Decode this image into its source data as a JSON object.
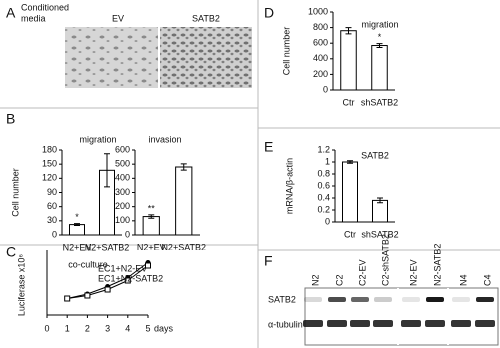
{
  "panels": [
    "A",
    "B",
    "C",
    "D",
    "E",
    "F"
  ],
  "images": {
    "caption": [
      "Conditioned",
      "media"
    ],
    "labels": [
      "EV",
      "SATB2"
    ]
  },
  "chart_data": [
    {
      "type": "bar",
      "title": "migration",
      "ylabel": "Cell number",
      "categories": [
        "N2+EV",
        "N2+SATB2"
      ],
      "values": [
        22,
        137
      ],
      "errors": [
        2,
        35
      ],
      "annotations": [
        "*",
        null
      ],
      "ylim": [
        0,
        180
      ],
      "yticks": [
        0,
        30,
        60,
        90,
        120,
        150,
        180
      ],
      "color": "#ffffff"
    },
    {
      "type": "bar",
      "title": "invasion",
      "categories": [
        "N2+EV",
        "N2+SATB2"
      ],
      "values": [
        130,
        480
      ],
      "errors": [
        12,
        22
      ],
      "annotations": [
        "**",
        null
      ],
      "ylim": [
        0,
        600
      ],
      "yticks": [
        0,
        100,
        200,
        300,
        400,
        500,
        600
      ],
      "color": "#ffffff"
    },
    {
      "type": "line",
      "title": "co-culture",
      "ylabel": "Luciferase x10⁶",
      "xlabel": "days",
      "x": [
        1,
        2,
        3,
        4,
        5
      ],
      "xlim": [
        0,
        5
      ],
      "xticks": [
        0,
        1,
        2,
        3,
        4,
        5
      ],
      "ylim": [
        0,
        4
      ],
      "series": [
        {
          "name": "EC1+N2-EV",
          "color": "#000000",
          "marker": "circle",
          "values": [
            1.1,
            1.4,
            1.9,
            2.5,
            3.5
          ]
        },
        {
          "name": "EC1+N2-SATB2",
          "color": "#000000",
          "marker": "square",
          "values": [
            1.1,
            1.3,
            1.7,
            2.3,
            3.3
          ]
        }
      ]
    },
    {
      "type": "bar",
      "title": "migration",
      "ylabel": "Cell number",
      "categories": [
        "Ctr",
        "shSATB2"
      ],
      "values": [
        760,
        570
      ],
      "errors": [
        40,
        25
      ],
      "annotations": [
        null,
        "*"
      ],
      "ylim": [
        0,
        1000
      ],
      "yticks": [
        0,
        200,
        400,
        600,
        800,
        1000
      ],
      "color": "#ffffff"
    },
    {
      "type": "bar",
      "title": "SATB2",
      "ylabel": "mRNA/β-actin",
      "categories": [
        "Ctr",
        "shSATB2"
      ],
      "values": [
        1.0,
        0.36
      ],
      "errors": [
        0.02,
        0.04
      ],
      "annotations": [
        null,
        null
      ],
      "ylim": [
        0,
        1.2
      ],
      "yticks": [
        0,
        0.2,
        0.4,
        0.6,
        0.8,
        1,
        1.2
      ],
      "color": "#ffffff"
    }
  ],
  "blot": {
    "lanes": [
      "N2",
      "C2",
      "C2-EV",
      "C2-shSATB2",
      "N2-EV",
      "N2-SATB2",
      "N4",
      "C4"
    ],
    "rows": [
      "SATB2",
      "α-tubulin"
    ]
  }
}
